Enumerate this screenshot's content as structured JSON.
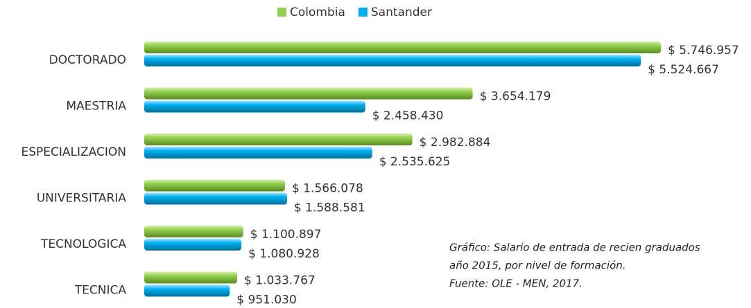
{
  "chart_data": {
    "type": "bar",
    "orientation": "horizontal",
    "categories": [
      "DOCTORADO",
      "MAESTRIA",
      "ESPECIALIZACION",
      "UNIVERSITARIA",
      "TECNOLOGICA",
      "TECNICA"
    ],
    "series": [
      {
        "name": "Colombia",
        "color": "#92d050",
        "label_color": "#77933c",
        "values": [
          5746957,
          3654179,
          2982884,
          1566078,
          1100897,
          1033767
        ],
        "value_labels": [
          "$ 5.746.957",
          "$ 3.654.179",
          "$ 2.982.884",
          "$ 1.566.078",
          "$ 1.100.897",
          "$ 1.033.767"
        ]
      },
      {
        "name": "Santander",
        "color": "#00b0f0",
        "label_color": "#333333",
        "values": [
          5524667,
          2458430,
          2535625,
          1588581,
          1080928,
          951030
        ],
        "value_labels": [
          "$ 5.524.667",
          "$ 2.458.430",
          "$ 2.535.625",
          "$ 1.588.581",
          "$ 1.080.928",
          "$ 951.030"
        ]
      }
    ],
    "legend": "top",
    "annotation": [
      "Gráfico: Salario de entrada de recien graduados",
      "año 2015, por nivel de formación.",
      "Fuente: OLE - MEN, 2017."
    ]
  }
}
